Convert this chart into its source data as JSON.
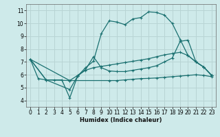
{
  "xlabel": "Humidex (Indice chaleur)",
  "background_color": "#ceeaea",
  "grid_color": "#b8d4d4",
  "line_color": "#1a7070",
  "xlim": [
    -0.5,
    23.5
  ],
  "ylim": [
    3.5,
    11.5
  ],
  "xticks": [
    0,
    1,
    2,
    3,
    4,
    5,
    6,
    7,
    8,
    9,
    10,
    11,
    12,
    13,
    14,
    15,
    16,
    17,
    18,
    19,
    20,
    21,
    22,
    23
  ],
  "yticks": [
    4,
    5,
    6,
    7,
    8,
    9,
    10,
    11
  ],
  "series1": [
    [
      0,
      7.2
    ],
    [
      1,
      5.7
    ],
    [
      2,
      5.6
    ],
    [
      3,
      5.6
    ],
    [
      4,
      5.6
    ],
    [
      5,
      4.2
    ],
    [
      6,
      5.9
    ],
    [
      7,
      6.55
    ],
    [
      8,
      7.05
    ],
    [
      9,
      9.2
    ],
    [
      10,
      10.2
    ],
    [
      11,
      10.1
    ],
    [
      12,
      9.9
    ],
    [
      13,
      10.35
    ],
    [
      14,
      10.45
    ],
    [
      15,
      10.9
    ],
    [
      16,
      10.85
    ],
    [
      17,
      10.65
    ],
    [
      18,
      10.0
    ],
    [
      19,
      8.75
    ],
    [
      20,
      7.5
    ],
    [
      21,
      7.0
    ],
    [
      22,
      6.6
    ],
    [
      23,
      5.95
    ]
  ],
  "series2": [
    [
      0,
      7.2
    ],
    [
      2,
      5.6
    ],
    [
      5,
      4.85
    ],
    [
      6,
      5.9
    ],
    [
      7,
      6.4
    ],
    [
      8,
      7.4
    ],
    [
      9,
      6.55
    ],
    [
      10,
      6.3
    ],
    [
      11,
      6.25
    ],
    [
      12,
      6.25
    ],
    [
      13,
      6.35
    ],
    [
      14,
      6.45
    ],
    [
      15,
      6.55
    ],
    [
      16,
      6.7
    ],
    [
      17,
      7.0
    ],
    [
      18,
      7.3
    ],
    [
      19,
      8.6
    ],
    [
      20,
      8.7
    ],
    [
      21,
      7.0
    ],
    [
      22,
      6.6
    ],
    [
      23,
      5.95
    ]
  ],
  "series3": [
    [
      0,
      7.2
    ],
    [
      5,
      5.55
    ],
    [
      6,
      5.95
    ],
    [
      7,
      6.35
    ],
    [
      8,
      6.55
    ],
    [
      9,
      6.65
    ],
    [
      10,
      6.75
    ],
    [
      11,
      6.85
    ],
    [
      12,
      6.95
    ],
    [
      13,
      7.05
    ],
    [
      14,
      7.15
    ],
    [
      15,
      7.25
    ],
    [
      16,
      7.4
    ],
    [
      17,
      7.55
    ],
    [
      18,
      7.65
    ],
    [
      19,
      7.75
    ],
    [
      20,
      7.5
    ],
    [
      21,
      7.0
    ],
    [
      22,
      6.6
    ],
    [
      23,
      5.95
    ]
  ],
  "series4": [
    [
      0,
      7.2
    ],
    [
      2,
      5.6
    ],
    [
      5,
      5.55
    ],
    [
      10,
      5.55
    ],
    [
      11,
      5.55
    ],
    [
      12,
      5.6
    ],
    [
      13,
      5.65
    ],
    [
      14,
      5.7
    ],
    [
      15,
      5.72
    ],
    [
      16,
      5.75
    ],
    [
      17,
      5.8
    ],
    [
      18,
      5.85
    ],
    [
      19,
      5.9
    ],
    [
      20,
      5.95
    ],
    [
      21,
      6.0
    ],
    [
      22,
      5.95
    ],
    [
      23,
      5.85
    ]
  ]
}
